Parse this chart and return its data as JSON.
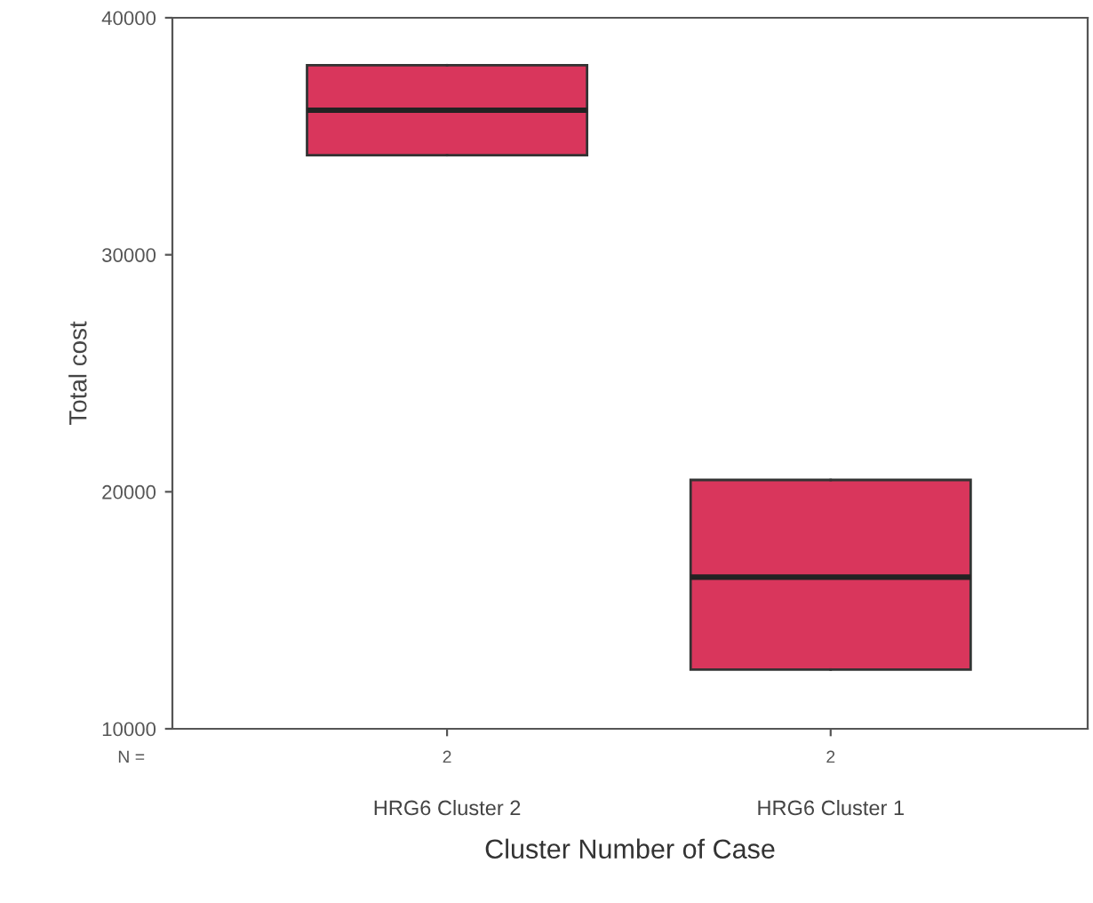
{
  "chart_data": {
    "type": "box",
    "xlabel": "Cluster Number of Case",
    "ylabel": "Total cost",
    "categories": [
      "HRG6 Cluster 2",
      "HRG6 Cluster 1"
    ],
    "series": [
      {
        "color": "#d9365c",
        "boxes": [
          {
            "low": 34200,
            "q1": 34200,
            "median": 36100,
            "q3": 38000,
            "high": 38000
          },
          {
            "low": 12500,
            "q1": 12500,
            "median": 16400,
            "q3": 20500,
            "high": 20500
          }
        ]
      }
    ],
    "ylim": [
      10000,
      40000
    ],
    "yticks": [
      10000,
      20000,
      30000,
      40000
    ],
    "grid": false,
    "legend": false,
    "annotations": [
      "N =",
      {
        "text": "2",
        "x": "HRG6 Cluster 2"
      },
      {
        "text": "2",
        "x": "HRG6 Cluster 1"
      }
    ]
  }
}
